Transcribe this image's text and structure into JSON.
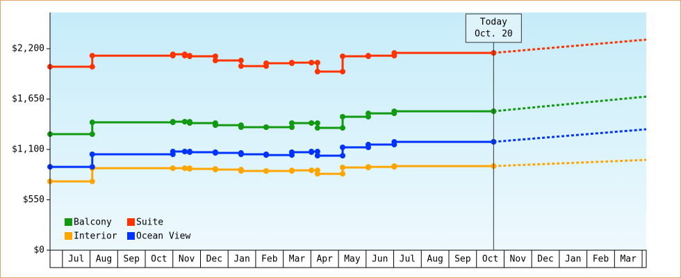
{
  "chart_data": {
    "type": "step-line",
    "categories": [
      "Jul",
      "Aug",
      "Sep",
      "Oct",
      "Nov",
      "Dec",
      "Jan",
      "Feb",
      "Mar",
      "Apr",
      "May",
      "Jun",
      "Jul",
      "Aug",
      "Sep",
      "Oct",
      "Nov",
      "Dec",
      "Jan",
      "Feb",
      "Mar"
    ],
    "xticks": [
      1,
      2,
      3,
      4,
      5,
      6,
      7,
      8,
      9,
      10,
      11,
      12,
      13,
      14,
      15,
      16,
      17,
      18,
      19,
      20,
      21,
      22
    ],
    "xlim": [
      0.55,
      22.15
    ],
    "x": [
      0.55,
      2.08,
      5.0,
      5.43,
      5.61,
      6.54,
      7.47,
      8.38,
      9.31,
      10.02,
      10.24,
      11.15,
      12.08,
      13.02,
      16.62
    ],
    "forecast_x": 22.15,
    "today": {
      "x": 16.62,
      "label": "Today",
      "date": "Oct. 20"
    },
    "ylim": [
      0,
      2595
    ],
    "yticks": [
      {
        "value": 0,
        "label": "$0"
      },
      {
        "value": 550,
        "label": "$550"
      },
      {
        "value": 1100,
        "label": "$1,100"
      },
      {
        "value": 1650,
        "label": "$1,650"
      },
      {
        "value": 2200,
        "label": "$2,200"
      }
    ],
    "series": [
      {
        "name": "Balcony",
        "color": "#119911",
        "values": [
          1267,
          1396,
          1403,
          1403,
          1388,
          1365,
          1343,
          1343,
          1388,
          1388,
          1335,
          1457,
          1494,
          1517,
          1517
        ],
        "forecast": 1677
      },
      {
        "name": "Suite",
        "color": "#ff3300",
        "values": [
          2003,
          2124,
          2139,
          2124,
          2117,
          2071,
          2010,
          2041,
          2048,
          2048,
          1950,
          2117,
          2124,
          2154,
          2154
        ],
        "forecast": 2299
      },
      {
        "name": "Interior",
        "color": "#ffa500",
        "values": [
          751,
          895,
          895,
          895,
          888,
          880,
          865,
          865,
          872,
          872,
          834,
          903,
          910,
          918,
          918
        ],
        "forecast": 986
      },
      {
        "name": "Ocean View",
        "color": "#0033ff",
        "values": [
          910,
          1047,
          1077,
          1077,
          1070,
          1062,
          1047,
          1039,
          1070,
          1077,
          1032,
          1123,
          1153,
          1183,
          1183
        ],
        "forecast": 1320
      }
    ]
  }
}
